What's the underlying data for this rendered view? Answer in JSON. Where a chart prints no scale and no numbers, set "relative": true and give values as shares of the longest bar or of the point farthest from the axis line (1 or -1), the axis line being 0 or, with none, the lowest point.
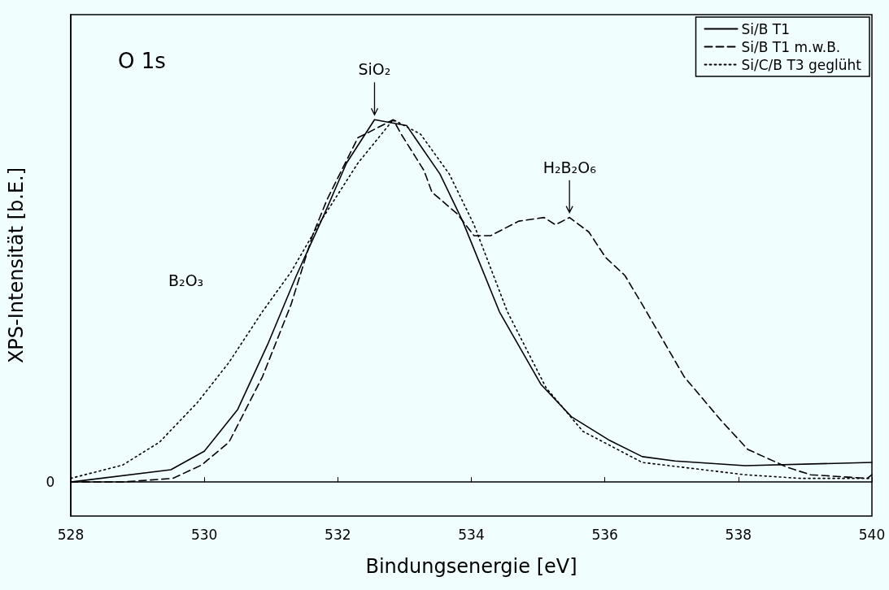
{
  "chart_data": {
    "type": "line",
    "relative": true,
    "xlabel": "Bindungsenergie [eV]",
    "ylabel": "XPS-Intensität [b.E.]",
    "xlim": [
      528,
      540
    ],
    "xticks": [
      528,
      530,
      532,
      534,
      536,
      538,
      540
    ],
    "grid": false,
    "legend": "top right",
    "marker": "none",
    "annotations": [
      "O 1s",
      "B₂O₃",
      "0",
      {
        "text": "SiO₂",
        "x": 532.55,
        "y": 1.0
      },
      {
        "text": "H₂B₂O₆",
        "x": 535.47,
        "y": 0.73
      }
    ],
    "series": [
      {
        "name": "Si/B T1",
        "color": "#000000",
        "line_style": "solid",
        "x": [
          528,
          529.5,
          530.0,
          530.5,
          530.95,
          531.38,
          531.8,
          532.13,
          532.55,
          533.03,
          533.53,
          533.87,
          534.42,
          535.04,
          535.5,
          536.05,
          536.56,
          537.05,
          538.1,
          540
        ],
        "values": [
          0,
          0.034,
          0.085,
          0.2,
          0.38,
          0.57,
          0.74,
          0.88,
          1.0,
          0.984,
          0.85,
          0.72,
          0.47,
          0.27,
          0.18,
          0.117,
          0.07,
          0.058,
          0.045,
          0.054
        ]
      },
      {
        "name": "Si/B T1 m.w.B.",
        "color": "#000000",
        "line_style": "dashed",
        "x": [
          528,
          528.78,
          529.53,
          529.96,
          530.37,
          530.87,
          531.3,
          531.62,
          531.84,
          532.3,
          532.83,
          532.95,
          533.29,
          533.41,
          533.79,
          534.04,
          534.29,
          534.71,
          535.09,
          535.26,
          535.47,
          535.76,
          536.01,
          536.3,
          536.56,
          537.19,
          537.74,
          538.14,
          538.74,
          539.08,
          539.93,
          540
        ],
        "values": [
          0,
          0,
          0.01,
          0.047,
          0.11,
          0.29,
          0.49,
          0.68,
          0.78,
          0.95,
          1.0,
          0.96,
          0.86,
          0.8,
          0.74,
          0.68,
          0.68,
          0.72,
          0.73,
          0.71,
          0.73,
          0.69,
          0.62,
          0.57,
          0.49,
          0.29,
          0.17,
          0.09,
          0.04,
          0.02,
          0.01,
          0.02
        ]
      },
      {
        "name": "Si/C/B T3 geglüht",
        "color": "#000000",
        "line_style": "dotted",
        "x": [
          528,
          528.78,
          529.33,
          529.9,
          530.37,
          530.87,
          531.3,
          531.71,
          532.3,
          532.83,
          533.24,
          533.67,
          534.04,
          534.54,
          535.12,
          535.67,
          536.56,
          538.1,
          538.93,
          540
        ],
        "values": [
          0.01,
          0.047,
          0.11,
          0.22,
          0.33,
          0.47,
          0.58,
          0.71,
          0.88,
          1.0,
          0.96,
          0.85,
          0.71,
          0.47,
          0.26,
          0.14,
          0.054,
          0.02,
          0.01,
          0.01
        ]
      }
    ]
  }
}
